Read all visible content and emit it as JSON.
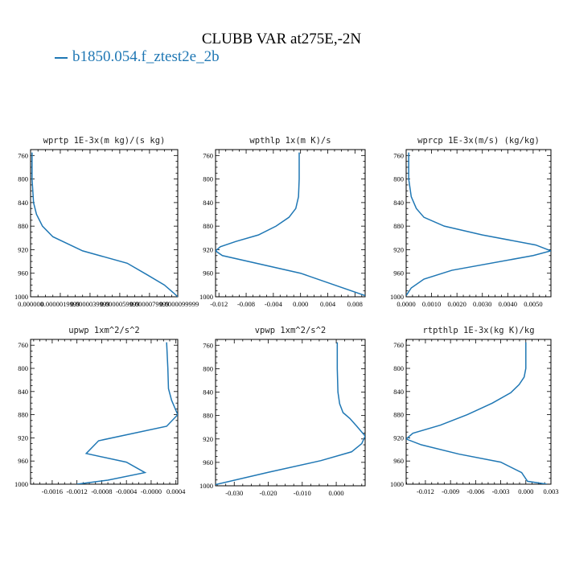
{
  "figure": {
    "title": "CLUBB VAR at275E,-2N",
    "legend": "b1850.054.f_ztest2e_2b",
    "line_color": "#1f77b4"
  },
  "chart_data": [
    {
      "type": "line",
      "title": "wprtp  1E-3x(m kg)/(s kg)",
      "xlim": [
        0.0,
        9.9e-06
      ],
      "ylim": [
        1000,
        750
      ],
      "xticks": [
        "0.000000",
        "0.0000019999",
        "0.0000039999",
        "0.0000059999",
        "0.0000079999",
        "0.0000099999"
      ],
      "xtick_values": [
        0.0,
        2e-06,
        4e-06,
        6e-06,
        8e-06,
        1e-05
      ],
      "yticks": [
        760,
        800,
        840,
        880,
        920,
        960,
        1000
      ],
      "x": [
        1e-07,
        1e-07,
        2e-07,
        4e-07,
        8e-07,
        1.5e-06,
        3.5e-06,
        6.5e-06,
        7.8e-06,
        9e-06,
        9.6e-06,
        9.9e-06
      ],
      "y": [
        755,
        800,
        840,
        860,
        880,
        898,
        922,
        943,
        962,
        980,
        993,
        1000
      ]
    },
    {
      "type": "line",
      "title": "wpthlp  1x(m K)/s",
      "xlim": [
        -0.0125,
        0.0095
      ],
      "ylim": [
        1000,
        750
      ],
      "xticks": [
        "-0.012",
        "-0.008",
        "-0.004",
        "0.000",
        "0.004",
        "0.008"
      ],
      "xtick_values": [
        -0.012,
        -0.008,
        -0.004,
        0.0,
        0.004,
        0.008
      ],
      "yticks": [
        760,
        800,
        840,
        880,
        920,
        960,
        1000
      ],
      "x": [
        -0.0002,
        -0.0002,
        -0.0003,
        -0.0007,
        -0.0017,
        -0.0036,
        -0.0062,
        -0.0095,
        -0.0118,
        -0.0125,
        -0.0115,
        0.0,
        0.0095
      ],
      "y": [
        755,
        800,
        830,
        850,
        865,
        880,
        895,
        906,
        915,
        922,
        930,
        960,
        998
      ]
    },
    {
      "type": "line",
      "title": "wprcp  1E-3x(m/s) (kg/kg)",
      "xlim": [
        0.0,
        0.0057
      ],
      "ylim": [
        1000,
        750
      ],
      "xticks": [
        "0.0000",
        "0.0010",
        "0.0020",
        "0.0030",
        "0.0040",
        "0.0050"
      ],
      "xtick_values": [
        0.0,
        0.001,
        0.002,
        0.003,
        0.004,
        0.005
      ],
      "yticks": [
        760,
        800,
        840,
        880,
        920,
        960,
        1000
      ],
      "x": [
        0.0001,
        0.0001,
        0.0002,
        0.0004,
        0.0007,
        0.0015,
        0.003,
        0.0051,
        0.0057,
        0.005,
        0.0018,
        0.0007,
        0.0002,
        0.0
      ],
      "y": [
        755,
        800,
        830,
        850,
        865,
        880,
        895,
        912,
        922,
        930,
        955,
        970,
        985,
        998
      ]
    },
    {
      "type": "line",
      "title": "upwp  1xm^2/s^2",
      "xlim": [
        -0.00195,
        0.00043
      ],
      "ylim": [
        1000,
        750
      ],
      "xticks": [
        "-0.0016",
        "-0.0012",
        "-0.0008",
        "-0.0004",
        "-0.0000",
        "0.0004"
      ],
      "xtick_values": [
        -0.0016,
        -0.0012,
        -0.0008,
        -0.0004,
        0.0,
        0.0004
      ],
      "yticks": [
        760,
        800,
        840,
        880,
        920,
        960,
        1000
      ],
      "x": [
        0.00025,
        0.00027,
        0.00028,
        0.00033,
        0.00043,
        0.00025,
        -0.00085,
        -0.00105,
        -0.0004,
        -0.0001,
        -0.0007,
        -0.0012
      ],
      "y": [
        755,
        800,
        835,
        855,
        880,
        900,
        925,
        947,
        962,
        980,
        993,
        1000
      ]
    },
    {
      "type": "line",
      "title": "vpwp  1xm^2/s^2",
      "xlim": [
        -0.0355,
        0.0085
      ],
      "ylim": [
        1000,
        750
      ],
      "xticks": [
        "-0.030",
        "-0.020",
        "-0.010",
        "0.000"
      ],
      "xtick_values": [
        -0.03,
        -0.02,
        -0.01,
        0.0
      ],
      "yticks": [
        760,
        800,
        840,
        880,
        920,
        960,
        1000
      ],
      "x": [
        0.0003,
        0.0003,
        0.0005,
        0.001,
        0.002,
        0.004,
        0.006,
        0.0085,
        0.0075,
        0.0045,
        -0.0045,
        -0.02,
        -0.0355
      ],
      "y": [
        755,
        800,
        840,
        860,
        875,
        885,
        898,
        915,
        928,
        942,
        957,
        977,
        998
      ]
    },
    {
      "type": "line",
      "title": "rtpthlp  1E-3x(kg K)/kg",
      "xlim": [
        -0.0143,
        0.003
      ],
      "ylim": [
        1000,
        750
      ],
      "xticks": [
        "-0.012",
        "-0.009",
        "-0.006",
        "-0.003",
        "0.000",
        "0.003"
      ],
      "xtick_values": [
        -0.012,
        -0.009,
        -0.006,
        -0.003,
        0.0,
        0.003
      ],
      "yticks": [
        760,
        800,
        840,
        880,
        920,
        960,
        1000
      ],
      "x": [
        0.0,
        0.0,
        -0.0002,
        -0.0008,
        -0.0018,
        -0.004,
        -0.007,
        -0.0102,
        -0.0135,
        -0.0143,
        -0.0125,
        -0.008,
        -0.003,
        -0.0005,
        0.0002,
        0.0025
      ],
      "y": [
        755,
        800,
        815,
        828,
        842,
        860,
        880,
        898,
        912,
        922,
        932,
        948,
        962,
        980,
        995,
        1000
      ]
    }
  ]
}
